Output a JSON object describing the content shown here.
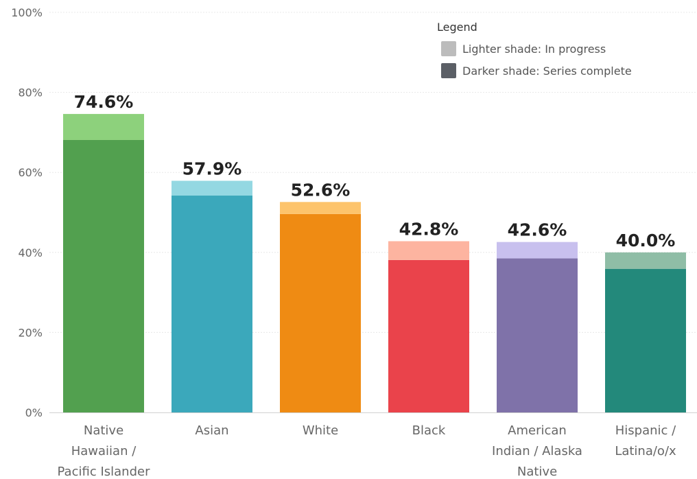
{
  "chart_data": {
    "type": "bar",
    "stacked": true,
    "categories": [
      [
        "Native",
        "Hawaiian /",
        "Pacific Islander"
      ],
      [
        "Asian"
      ],
      [
        "White"
      ],
      [
        "Black"
      ],
      [
        "American",
        "Indian / Alaska",
        "Native"
      ],
      [
        "Hispanic /",
        "Latina/o/x"
      ]
    ],
    "series": [
      {
        "name": "Darker shade: Series complete",
        "values": [
          68.1,
          54.2,
          49.6,
          38.1,
          38.5,
          35.9
        ],
        "colors": [
          "#52a04f",
          "#3ba8bb",
          "#ef8b13",
          "#ea434b",
          "#7f72a9",
          "#23897b"
        ]
      },
      {
        "name": "Lighter shade: In progress",
        "values": [
          6.5,
          3.7,
          3.0,
          4.7,
          4.1,
          4.1
        ],
        "colors": [
          "#8dd17c",
          "#94d8e2",
          "#fdc46c",
          "#fdb4a0",
          "#c8c0ee",
          "#8fbda6"
        ]
      }
    ],
    "totals": [
      74.6,
      57.9,
      52.6,
      42.8,
      42.6,
      40.0
    ],
    "data_labels": [
      "74.6%",
      "57.9%",
      "52.6%",
      "42.8%",
      "42.6%",
      "40.0%"
    ],
    "yticks": [
      0,
      20,
      40,
      60,
      80,
      100
    ],
    "ytick_labels": [
      "0%",
      "20%",
      "40%",
      "60%",
      "80%",
      "100%"
    ],
    "ylim": [
      0,
      100
    ],
    "grid": true,
    "legend": {
      "title": "Legend",
      "placement": "top-right",
      "entries": [
        {
          "label": "Lighter shade: In progress",
          "swatch": "#bcbcbc"
        },
        {
          "label": "Darker shade: Series complete",
          "swatch": "#5b5f66"
        }
      ]
    }
  }
}
